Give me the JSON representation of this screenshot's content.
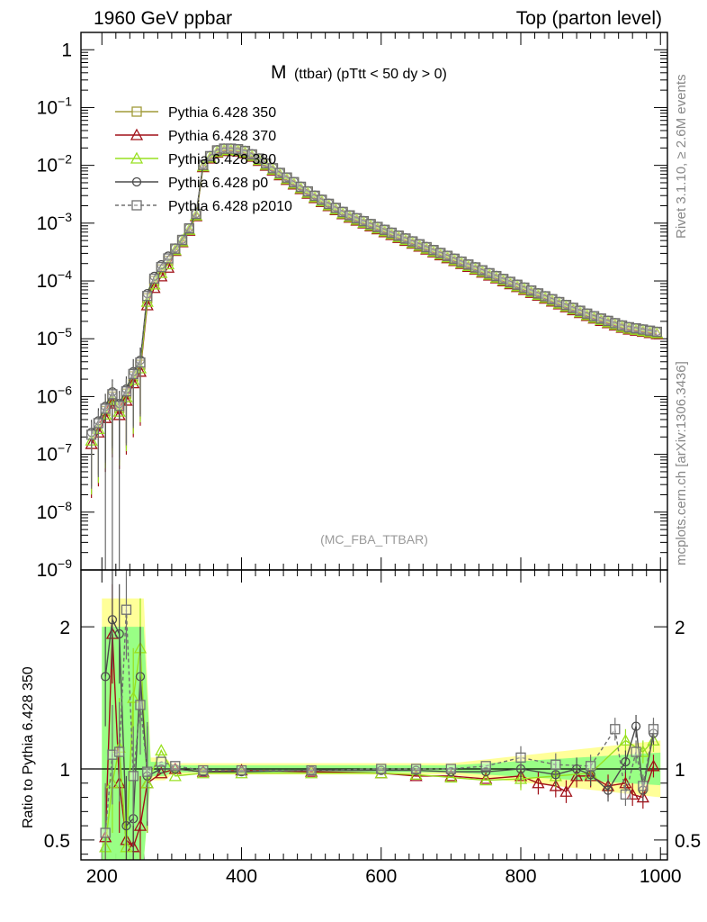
{
  "header": {
    "left": "1960 GeV ppbar",
    "right": "Top (parton level)"
  },
  "plot_title": {
    "main": "M",
    "sub": "(ttbar) (pTtt < 50 dy > 0)"
  },
  "watermark": "(MC_FBA_TTBAR)",
  "side_labels": {
    "rivet": "Rivet 3.1.10, ≥ 2.6M events",
    "mcplots": "mcplots.cern.ch [arXiv:1306.3436]"
  },
  "ratio_ylabel": "Ratio to Pythia 6.428 350",
  "colors": {
    "s350": "#a09a38",
    "s370": "#a01018",
    "s380": "#98e020",
    "p0": "#4c4c4c",
    "p2010": "#707070",
    "band_yellow": "#ffff80",
    "band_green": "#80ff80"
  },
  "chart_data": {
    "type": "line",
    "xlim": [
      170,
      1010
    ],
    "main_yscale": "log",
    "main_ylim_exp": [
      -9,
      0.3
    ],
    "ratio_ylim": [
      0.36,
      2.4
    ],
    "x_ticks": [
      "200",
      "400",
      "600",
      "800",
      "1000"
    ],
    "main_y_ticks": [
      "1",
      "10^-1",
      "10^-2",
      "10^-3",
      "10^-4",
      "10^-5",
      "10^-6",
      "10^-7",
      "10^-8",
      "10^-9"
    ],
    "ratio_y_ticks": [
      "0.5",
      "1",
      "2"
    ],
    "legend": {
      "placement": "top-left",
      "entries": [
        {
          "label": "Pythia 6.428 350",
          "marker": "square",
          "color": "#a09a38",
          "dash": false
        },
        {
          "label": "Pythia 6.428 370",
          "marker": "triangle",
          "color": "#a01018",
          "dash": false
        },
        {
          "label": "Pythia 6.428 380",
          "marker": "triangle",
          "color": "#98e020",
          "dash": false
        },
        {
          "label": "Pythia 6.428 p0",
          "marker": "circle",
          "color": "#4c4c4c",
          "dash": false
        },
        {
          "label": "Pythia 6.428 p2010",
          "marker": "square",
          "color": "#707070",
          "dash": true
        }
      ]
    },
    "main_reference_curve": {
      "description": "approximate log10 of the distribution vs mass",
      "x": [
        185,
        200,
        205,
        210,
        215,
        220,
        225,
        230,
        235,
        240,
        245,
        250,
        255,
        260,
        265,
        275,
        285,
        295,
        305,
        315,
        325,
        335,
        345,
        355,
        365,
        375,
        385,
        395,
        405,
        420,
        450,
        500,
        550,
        600,
        650,
        700,
        750,
        800,
        850,
        900,
        950,
        1000
      ],
      "log10y": [
        -6.7,
        -6.4,
        -6.25,
        -6.15,
        -6.0,
        -5.85,
        -6.2,
        -6.05,
        -5.95,
        -5.85,
        -5.65,
        -5.55,
        -5.45,
        -4.75,
        -4.3,
        -4.0,
        -3.8,
        -3.65,
        -3.45,
        -3.3,
        -3.1,
        -2.85,
        -2.0,
        -1.85,
        -1.75,
        -1.72,
        -1.72,
        -1.73,
        -1.76,
        -1.85,
        -2.1,
        -2.5,
        -2.85,
        -3.1,
        -3.35,
        -3.6,
        -3.85,
        -4.1,
        -4.35,
        -4.6,
        -4.8,
        -4.9
      ]
    },
    "ratio_series": [
      {
        "name": "Pythia 6.428 350",
        "values_desc": "reference, constant 1.0"
      },
      {
        "name": "Pythia 6.428 370",
        "x": [
          205,
          215,
          225,
          235,
          245,
          255,
          265,
          285,
          305,
          345,
          400,
          500,
          600,
          650,
          700,
          750,
          800,
          825,
          850,
          865,
          880,
          900,
          925,
          950,
          960,
          975,
          990
        ],
        "y": [
          0.52,
          1.95,
          0.9,
          0.5,
          0.45,
          0.6,
          0.9,
          0.97,
          1.0,
          0.98,
          0.99,
          0.98,
          0.97,
          0.95,
          0.95,
          0.93,
          0.95,
          0.9,
          0.88,
          0.84,
          0.95,
          0.95,
          0.88,
          0.9,
          0.82,
          0.8,
          1.02
        ]
      },
      {
        "name": "Pythia 6.428 380",
        "x": [
          205,
          215,
          225,
          235,
          245,
          255,
          265,
          285,
          305,
          345,
          400,
          500,
          600,
          650,
          700,
          750,
          800,
          850,
          900,
          950,
          975,
          990
        ],
        "y": [
          0.45,
          0.9,
          1.15,
          0.45,
          1.5,
          1.85,
          0.9,
          1.13,
          0.95,
          0.97,
          0.97,
          0.97,
          0.97,
          0.96,
          0.94,
          0.92,
          0.93,
          0.95,
          0.97,
          1.2,
          1.12,
          1.2
        ]
      },
      {
        "name": "Pythia 6.428 p0",
        "x": [
          205,
          215,
          225,
          235,
          245,
          255,
          265,
          285,
          305,
          345,
          400,
          500,
          600,
          650,
          700,
          750,
          800,
          850,
          880,
          900,
          925,
          950,
          965,
          975,
          990
        ],
        "y": [
          1.65,
          2.05,
          1.95,
          0.6,
          0.65,
          1.65,
          0.95,
          1.0,
          1.0,
          0.98,
          0.98,
          0.99,
          0.99,
          0.99,
          0.98,
          0.98,
          1.0,
          0.96,
          1.0,
          0.96,
          0.85,
          1.05,
          1.3,
          0.85,
          1.25
        ]
      },
      {
        "name": "Pythia 6.428 p2010",
        "x": [
          205,
          215,
          225,
          235,
          245,
          255,
          265,
          285,
          305,
          345,
          400,
          500,
          600,
          650,
          700,
          750,
          800,
          850,
          900,
          935,
          950,
          965,
          975,
          990
        ],
        "y": [
          0.55,
          1.1,
          1.12,
          2.12,
          0.95,
          1.45,
          0.98,
          1.05,
          1.02,
          0.99,
          0.99,
          0.99,
          1.0,
          1.0,
          1.0,
          1.02,
          1.08,
          1.03,
          1.02,
          1.28,
          0.82,
          1.12,
          0.88,
          1.28
        ]
      }
    ]
  }
}
